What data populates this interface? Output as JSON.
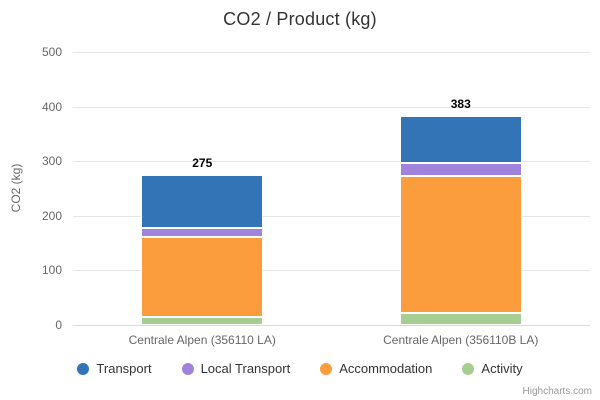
{
  "credit": "Highcharts.com",
  "chart_data": {
    "type": "bar",
    "stacked": true,
    "title": "CO2 / Product (kg)",
    "ylabel": "CO2 (kg)",
    "xlabel": "",
    "ylim": [
      0,
      500
    ],
    "yticks": [
      0,
      100,
      200,
      300,
      400,
      500
    ],
    "categories": [
      "Centrale Alpen (356110 LA)",
      "Centrale Alpen (356110B LA)"
    ],
    "series": [
      {
        "name": "Transport",
        "color": "#3274B5",
        "values": [
          97,
          86
        ]
      },
      {
        "name": "Local Transport",
        "color": "#9F83DC",
        "values": [
          16,
          24
        ]
      },
      {
        "name": "Accommodation",
        "color": "#FB9D3C",
        "values": [
          148,
          251
        ]
      },
      {
        "name": "Activity",
        "color": "#A7CE92",
        "values": [
          14,
          22
        ]
      }
    ],
    "stack_order_bottom_to_top": [
      "Activity",
      "Accommodation",
      "Local Transport",
      "Transport"
    ],
    "stack_totals": [
      275,
      383
    ],
    "legend_position": "bottom",
    "grid": true,
    "gridline_color": "#E6E6E6",
    "axis_line_color": "#D8D8D8",
    "background_color": "#FFFFFF"
  }
}
